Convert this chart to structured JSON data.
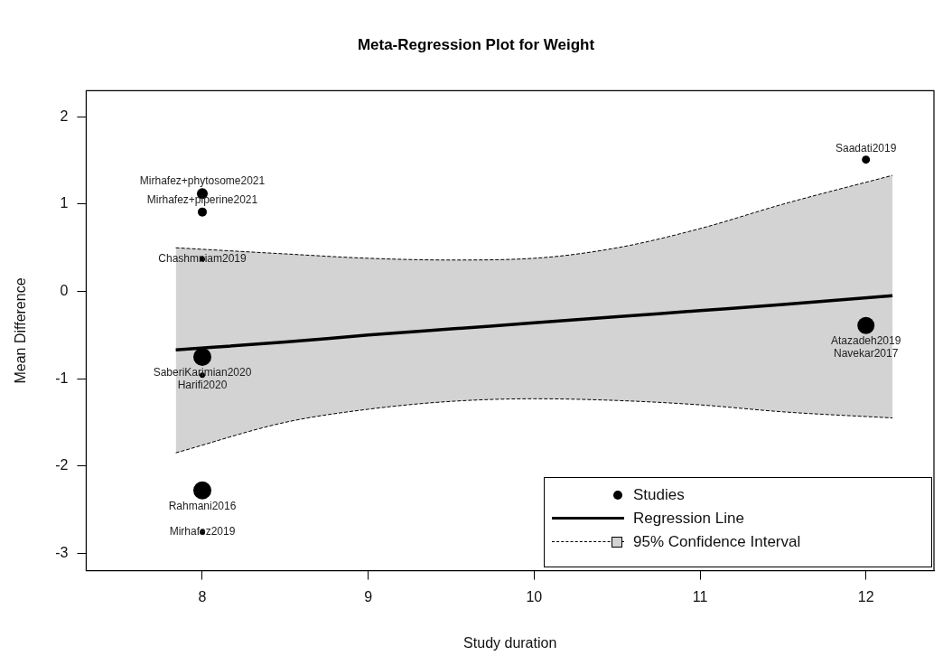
{
  "chart_data": {
    "type": "bubble",
    "title": "Meta-Regression Plot for Weight",
    "xlabel": "Study duration",
    "ylabel": "Mean Difference",
    "xlim": [
      7.3,
      12.41
    ],
    "xticks": [
      8,
      9,
      10,
      11,
      12
    ],
    "ylim": [
      -3.2,
      2.3
    ],
    "yticks": [
      -3,
      -2,
      -1,
      0,
      1,
      2
    ],
    "grid": false,
    "legend": "bottom right",
    "series": [
      {
        "name": "95% Confidence Interval",
        "type": "line",
        "x": [
          7.84,
          8.5,
          9,
          9.5,
          10,
          10.5,
          11,
          11.5,
          12.16
        ],
        "values": [
          0.5,
          0.43,
          0.38,
          0.36,
          0.38,
          0.5,
          0.72,
          1.0,
          1.33
        ],
        "color": "#000000",
        "line_style": "dashed"
      },
      {
        "type": "line",
        "x": [
          7.84,
          8.5,
          9,
          9.5,
          10,
          10.5,
          11,
          11.5,
          12.16
        ],
        "values": [
          -1.85,
          -1.5,
          -1.35,
          -1.26,
          -1.23,
          -1.25,
          -1.3,
          -1.38,
          -1.45
        ],
        "color": "#000000",
        "line_style": "dashed"
      },
      {
        "name": "Regression Line",
        "type": "line",
        "x": [
          7.84,
          8.5,
          9,
          9.5,
          10,
          10.5,
          11,
          11.5,
          12.16
        ],
        "values": [
          -0.67,
          -0.58,
          -0.5,
          -0.43,
          -0.36,
          -0.29,
          -0.22,
          -0.15,
          -0.05
        ],
        "color": "#000000",
        "line_style": "solid",
        "lower": [
          -1.85,
          -1.5,
          -1.35,
          -1.26,
          -1.23,
          -1.25,
          -1.3,
          -1.38,
          -1.45
        ],
        "upper": [
          0.5,
          0.43,
          0.38,
          0.36,
          0.38,
          0.5,
          0.72,
          1.0,
          1.33
        ]
      },
      {
        "name": "Studies",
        "x": [
          12,
          8,
          8,
          8,
          8,
          8,
          8,
          8,
          12
        ],
        "values": [
          1.51,
          1.12,
          0.91,
          0.37,
          -0.75,
          -0.96,
          -2.28,
          -2.76,
          -0.39
        ],
        "sizes": [
          0.2,
          0.36,
          0.25,
          0.09,
          1,
          0.09,
          1,
          0.09,
          0.9
        ],
        "color": "#000000",
        "value_labels": [
          "Saadati2019",
          "Mirhafez+phytosome2021",
          "Mirhafez+piperine2021",
          "Chashmniam2019",
          "SaberiKarimian2020",
          "Harifi2020",
          "Rahmani2016",
          "Mirhafez2019",
          "Atazadeh2019"
        ]
      }
    ],
    "annotations": [
      {
        "text": "Navekar2017",
        "x": 12,
        "y": -0.4
      }
    ]
  }
}
